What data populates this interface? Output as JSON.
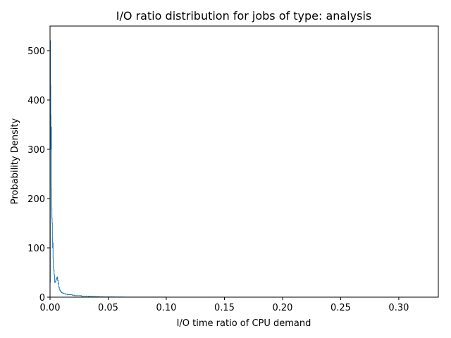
{
  "chart_data": {
    "type": "line",
    "style": "histogram-step",
    "title": "I/O ratio distribution for jobs of type: analysis",
    "xlabel": "I/O time ratio of CPU demand",
    "ylabel": "Probability Density",
    "xlim": [
      0,
      0.334
    ],
    "ylim": [
      0,
      550
    ],
    "xticks": [
      0,
      0.05,
      0.1,
      0.15,
      0.2,
      0.25,
      0.3
    ],
    "xtick_labels": [
      "0.00",
      "0.05",
      "0.10",
      "0.15",
      "0.20",
      "0.25",
      "0.30"
    ],
    "yticks": [
      0,
      100,
      200,
      300,
      400,
      500
    ],
    "ytick_labels": [
      "0",
      "100",
      "200",
      "300",
      "400",
      "500"
    ],
    "grid": false,
    "legend": "none",
    "line_color": "#1f77b4",
    "series": [
      {
        "x": [
          0.0,
          0.0002,
          0.0004,
          0.0006,
          0.0008,
          0.001,
          0.0012,
          0.0014,
          0.0016,
          0.0018,
          0.002,
          0.0022,
          0.0024,
          0.0026,
          0.0028,
          0.003,
          0.0035,
          0.004,
          0.0045,
          0.005,
          0.0055,
          0.006,
          0.0065,
          0.007,
          0.0075,
          0.008,
          0.0085,
          0.009,
          0.0095,
          0.01,
          0.011,
          0.012,
          0.013,
          0.015,
          0.017,
          0.019,
          0.021,
          0.024,
          0.027,
          0.03,
          0.033,
          0.036,
          0.039,
          0.042,
          0.046,
          0.05,
          0.055,
          0.06,
          0.063,
          0.07,
          0.1,
          0.15,
          0.2,
          0.25,
          0.3,
          0.32
        ],
        "y": [
          30,
          520,
          430,
          370,
          300,
          345,
          220,
          180,
          160,
          150,
          120,
          100,
          110,
          80,
          60,
          55,
          45,
          30,
          32,
          35,
          38,
          41,
          34,
          28,
          20,
          16,
          14,
          12,
          10,
          9,
          8,
          7,
          6,
          5,
          5,
          4,
          3,
          3,
          2,
          2,
          1.5,
          1.2,
          1,
          0.8,
          0.6,
          0.5,
          0.4,
          0.3,
          0.2,
          0.1,
          0.05,
          0.03,
          0.02,
          0.01,
          0.01,
          0
        ]
      }
    ]
  }
}
